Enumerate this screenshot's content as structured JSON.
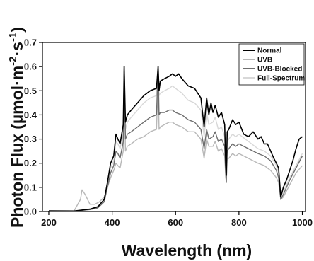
{
  "chart_data": {
    "type": "line",
    "xlabel": "Wavelength (nm)",
    "ylabel": {
      "before": "Photon Flux (µmol·m",
      "exp1": "-2",
      "mid": "·s",
      "exp2": "-1",
      "after": ")"
    },
    "xlim": [
      180,
      1010
    ],
    "ylim": [
      0,
      0.7
    ],
    "xticks": [
      200,
      400,
      600,
      800,
      1000
    ],
    "yticks": [
      0.0,
      0.1,
      0.2,
      0.3,
      0.4,
      0.5,
      0.6,
      0.7
    ],
    "ytick_labels": [
      "0.0",
      "0.1",
      "0.2",
      "0.3",
      "0.4",
      "0.5",
      "0.6",
      "0.7"
    ],
    "legend_position": "top-right",
    "grid": false,
    "series": [
      {
        "name": "Normal",
        "color": "#000000",
        "x": [
          200,
          280,
          330,
          355,
          375,
          385,
          395,
          405,
          412,
          418,
          425,
          435,
          438,
          442,
          448,
          460,
          480,
          500,
          520,
          540,
          545,
          548,
          552,
          565,
          580,
          590,
          600,
          610,
          620,
          640,
          660,
          680,
          690,
          698,
          705,
          712,
          718,
          725,
          735,
          745,
          755,
          758,
          760,
          763,
          768,
          780,
          790,
          800,
          815,
          830,
          845,
          860,
          870,
          880,
          890,
          900,
          910,
          918,
          925,
          932,
          940,
          950,
          960,
          970,
          980,
          990,
          1000
        ],
        "y": [
          0.003,
          0.002,
          0.01,
          0.02,
          0.05,
          0.12,
          0.2,
          0.23,
          0.32,
          0.3,
          0.28,
          0.36,
          0.6,
          0.37,
          0.4,
          0.42,
          0.45,
          0.48,
          0.5,
          0.51,
          0.6,
          0.5,
          0.54,
          0.55,
          0.56,
          0.57,
          0.56,
          0.57,
          0.55,
          0.52,
          0.51,
          0.47,
          0.35,
          0.47,
          0.4,
          0.45,
          0.41,
          0.44,
          0.39,
          0.41,
          0.36,
          0.2,
          0.15,
          0.33,
          0.34,
          0.38,
          0.36,
          0.37,
          0.32,
          0.31,
          0.33,
          0.3,
          0.31,
          0.28,
          0.28,
          0.25,
          0.22,
          0.2,
          0.18,
          0.06,
          0.1,
          0.13,
          0.17,
          0.21,
          0.26,
          0.3,
          0.31
        ]
      },
      {
        "name": "UVB",
        "color": "#b8b8b8",
        "x": [
          200,
          280,
          300,
          305,
          315,
          330,
          345,
          360,
          375,
          385,
          395,
          405,
          412,
          418,
          425,
          435,
          438,
          442,
          448,
          460,
          480,
          500,
          520,
          540,
          545,
          548,
          552,
          565,
          580,
          590,
          600,
          620,
          640,
          660,
          680,
          690,
          698,
          705,
          718,
          725,
          735,
          745,
          755,
          758,
          760,
          763,
          768,
          780,
          790,
          800,
          830,
          860,
          880,
          900,
          918,
          925,
          932,
          940,
          960,
          980,
          1000
        ],
        "y": [
          0.002,
          0.003,
          0.05,
          0.09,
          0.07,
          0.03,
          0.03,
          0.04,
          0.06,
          0.1,
          0.14,
          0.17,
          0.2,
          0.19,
          0.18,
          0.25,
          0.6,
          0.25,
          0.27,
          0.28,
          0.3,
          0.31,
          0.33,
          0.34,
          0.55,
          0.34,
          0.35,
          0.36,
          0.37,
          0.37,
          0.36,
          0.35,
          0.33,
          0.33,
          0.3,
          0.22,
          0.3,
          0.27,
          0.27,
          0.29,
          0.25,
          0.26,
          0.23,
          0.15,
          0.12,
          0.22,
          0.22,
          0.24,
          0.23,
          0.24,
          0.22,
          0.2,
          0.19,
          0.17,
          0.14,
          0.12,
          0.05,
          0.06,
          0.11,
          0.16,
          0.19
        ]
      },
      {
        "name": "UVB-Blocked",
        "color": "#6e6e6e",
        "x": [
          200,
          280,
          330,
          355,
          375,
          385,
          395,
          405,
          412,
          418,
          425,
          435,
          438,
          442,
          448,
          460,
          480,
          500,
          520,
          540,
          545,
          548,
          552,
          565,
          580,
          590,
          600,
          620,
          640,
          660,
          680,
          690,
          698,
          705,
          718,
          725,
          735,
          745,
          755,
          758,
          760,
          763,
          768,
          780,
          790,
          800,
          830,
          860,
          880,
          900,
          918,
          925,
          932,
          940,
          960,
          980,
          1000
        ],
        "y": [
          0.002,
          0.002,
          0.008,
          0.015,
          0.04,
          0.1,
          0.16,
          0.19,
          0.25,
          0.24,
          0.22,
          0.29,
          0.6,
          0.3,
          0.32,
          0.33,
          0.35,
          0.37,
          0.39,
          0.4,
          0.6,
          0.4,
          0.41,
          0.41,
          0.42,
          0.42,
          0.41,
          0.4,
          0.38,
          0.37,
          0.34,
          0.26,
          0.34,
          0.3,
          0.31,
          0.33,
          0.29,
          0.3,
          0.27,
          0.16,
          0.12,
          0.25,
          0.26,
          0.28,
          0.27,
          0.28,
          0.26,
          0.24,
          0.23,
          0.21,
          0.17,
          0.14,
          0.05,
          0.07,
          0.13,
          0.18,
          0.23
        ]
      },
      {
        "name": "Full-Spectrum",
        "color": "#d8d8d8",
        "x": [
          200,
          280,
          330,
          355,
          375,
          385,
          395,
          405,
          412,
          418,
          425,
          435,
          438,
          442,
          448,
          460,
          480,
          500,
          520,
          540,
          545,
          548,
          552,
          565,
          580,
          590,
          600,
          620,
          640,
          660,
          680,
          690,
          698,
          705,
          718,
          725,
          735,
          745,
          755,
          758,
          760,
          763,
          768,
          780,
          790,
          800,
          830,
          860,
          880,
          900,
          918,
          925,
          932,
          940,
          960,
          980,
          1000
        ],
        "y": [
          0.002,
          0.002,
          0.009,
          0.018,
          0.045,
          0.11,
          0.18,
          0.21,
          0.29,
          0.28,
          0.26,
          0.33,
          0.6,
          0.34,
          0.37,
          0.39,
          0.42,
          0.45,
          0.47,
          0.48,
          0.6,
          0.48,
          0.49,
          0.5,
          0.51,
          0.52,
          0.51,
          0.49,
          0.46,
          0.45,
          0.42,
          0.31,
          0.41,
          0.36,
          0.37,
          0.39,
          0.34,
          0.35,
          0.31,
          0.18,
          0.14,
          0.29,
          0.3,
          0.32,
          0.31,
          0.32,
          0.29,
          0.26,
          0.25,
          0.23,
          0.19,
          0.16,
          0.06,
          0.08,
          0.14,
          0.19,
          0.24
        ]
      }
    ]
  }
}
